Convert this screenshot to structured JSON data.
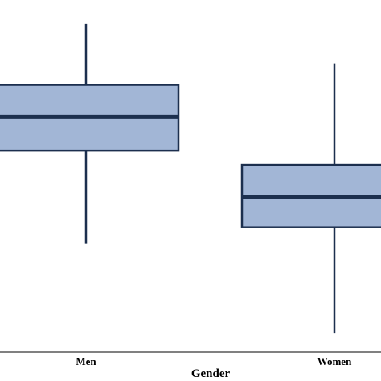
{
  "chart_data": {
    "type": "boxplot",
    "xlabel": "Gender",
    "categories": [
      "Men",
      "Women"
    ],
    "series": [
      {
        "name": "Men",
        "min": 340,
        "q1": 630,
        "median": 735,
        "q3": 835,
        "max": 1025
      },
      {
        "name": "Women",
        "min": 60,
        "q1": 390,
        "median": 485,
        "q3": 585,
        "max": 900
      }
    ],
    "ylim": [
      0,
      1100
    ],
    "grid": false,
    "legend": "none"
  },
  "colors": {
    "box_fill": "#a2b6d6",
    "box_stroke": "#1c2f4e",
    "axis": "#000000"
  }
}
